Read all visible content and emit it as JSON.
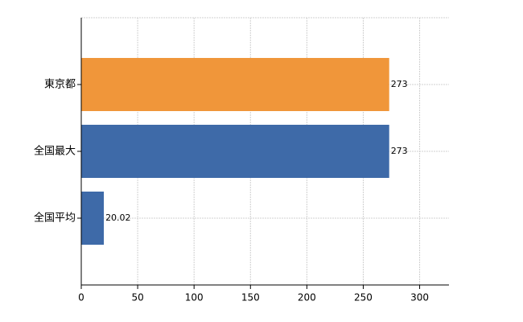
{
  "chart_data": {
    "type": "bar",
    "orientation": "horizontal",
    "categories": [
      "東京都",
      "全国最大",
      "全国平均"
    ],
    "values": [
      273,
      273,
      20.02
    ],
    "colors": [
      "#f0963a",
      "#3e6aa8",
      "#3e6aa8"
    ],
    "xlim": [
      0,
      326
    ],
    "xticks": [
      0,
      50,
      100,
      150,
      200,
      250,
      300
    ],
    "grid": true
  }
}
